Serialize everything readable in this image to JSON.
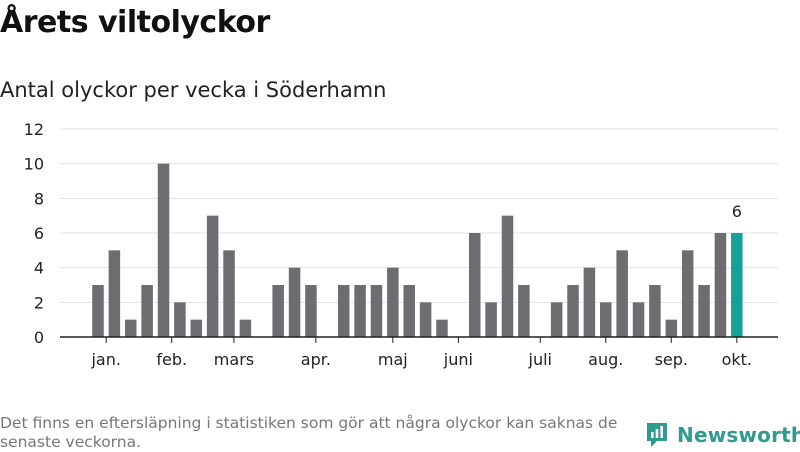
{
  "title": "Årets viltolyckor",
  "subtitle": "Antal olyckor per vecka i Söderhamn",
  "footnote": "Det finns en eftersläpning i statistiken som gör att några olyckor kan saknas de senaste veckorna.",
  "brand": {
    "name": "Newsworthy",
    "icon": "newsworthy-logo-icon"
  },
  "colors": {
    "bar": "#6d6c70",
    "highlight": "#13a19a",
    "grid": "#e3e3e3",
    "axis": "#222222"
  },
  "chart_data": {
    "type": "bar",
    "x": [
      1,
      2,
      3,
      4,
      5,
      6,
      7,
      8,
      9,
      10,
      11,
      12,
      13,
      14,
      15,
      16,
      17,
      18,
      19,
      20,
      21,
      22,
      23,
      24,
      25,
      26,
      27,
      28,
      29,
      30,
      31,
      32,
      33,
      34,
      35,
      36,
      37,
      38,
      39,
      40
    ],
    "values": [
      3,
      5,
      1,
      3,
      10,
      2,
      1,
      7,
      5,
      1,
      null,
      3,
      4,
      3,
      null,
      3,
      3,
      3,
      4,
      3,
      2,
      1,
      null,
      6,
      2,
      7,
      3,
      null,
      2,
      3,
      4,
      2,
      5,
      2,
      3,
      1,
      5,
      3,
      6,
      6
    ],
    "highlight_index": 39,
    "highlight_label": "6",
    "ylim": [
      0,
      12
    ],
    "yticks": [
      0,
      2,
      4,
      6,
      8,
      10,
      12
    ],
    "xticks": [
      {
        "label": "jan.",
        "at": 1.5
      },
      {
        "label": "feb.",
        "at": 5.5
      },
      {
        "label": "mars",
        "at": 9.3
      },
      {
        "label": "apr.",
        "at": 14.3
      },
      {
        "label": "maj",
        "at": 19.0
      },
      {
        "label": "juni",
        "at": 23.0
      },
      {
        "label": "juli",
        "at": 28.0
      },
      {
        "label": "aug.",
        "at": 32.0
      },
      {
        "label": "sep.",
        "at": 36.0
      },
      {
        "label": "okt.",
        "at": 40.0
      }
    ],
    "grid": true,
    "xlabel": "",
    "ylabel": ""
  }
}
